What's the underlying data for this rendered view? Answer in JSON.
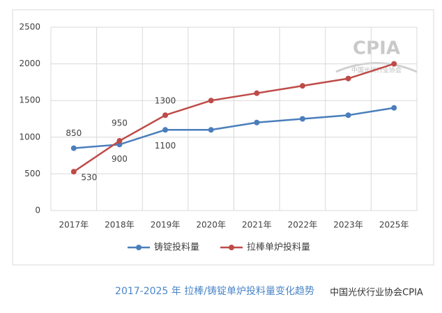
{
  "chart_data": {
    "type": "line",
    "caption": "2017-2025 年  拉棒/铸锭单炉投料量变化趋势",
    "watermark": "中国光伏行业协会CPIA",
    "logo": {
      "title": "CPIA",
      "subtitle": "中国光伏行业协会"
    },
    "categories": [
      "2017年",
      "2018年",
      "2019年",
      "2020年",
      "2021年",
      "2022年",
      "2023年",
      "2025年"
    ],
    "series": [
      {
        "name": "铸锭投料量",
        "color": "#4a7ebb",
        "values": [
          850,
          900,
          1100,
          1100,
          1200,
          1250,
          1300,
          1400
        ],
        "data_labels": [
          true,
          true,
          true,
          false,
          false,
          false,
          false,
          false
        ]
      },
      {
        "name": "拉棒单炉投料量",
        "color": "#be4b48",
        "values": [
          530,
          950,
          1300,
          1500,
          1600,
          1700,
          1800,
          2000
        ],
        "data_labels": [
          true,
          true,
          true,
          false,
          false,
          false,
          false,
          false
        ]
      }
    ],
    "ylim": [
      0,
      2500
    ],
    "yticks": [
      0,
      500,
      1000,
      1500,
      2000,
      2500
    ],
    "grid": true,
    "legend": "bottom"
  }
}
